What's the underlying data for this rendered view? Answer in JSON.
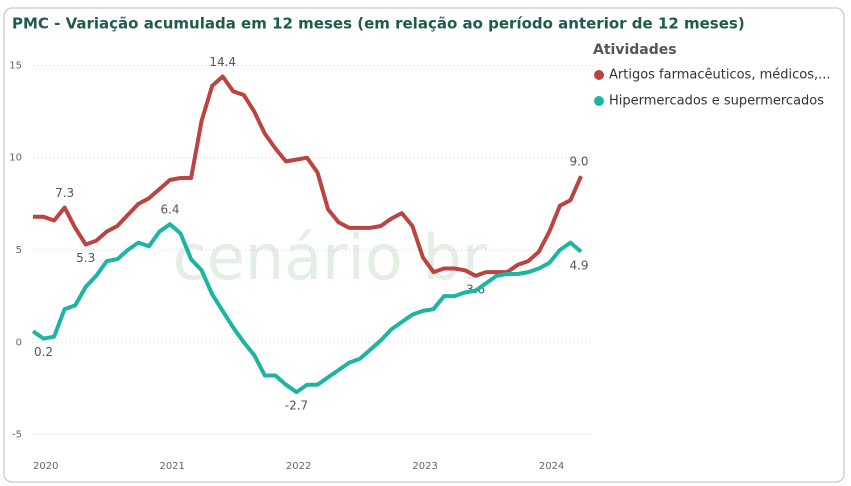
{
  "chart_data": {
    "type": "line",
    "title": "PMC - Variação acumulada em 12 meses (em relação ao período anterior de 12 meses)",
    "legend_title": "Atividades",
    "watermark": "cenário br",
    "categories": [
      "2020",
      null,
      null,
      null,
      null,
      null,
      null,
      null,
      null,
      null,
      null,
      null,
      "2021",
      null,
      null,
      null,
      null,
      null,
      null,
      null,
      null,
      null,
      null,
      null,
      "2022",
      null,
      null,
      null,
      null,
      null,
      null,
      null,
      null,
      null,
      null,
      null,
      "2023",
      null,
      null,
      null,
      null,
      null,
      null,
      null,
      null,
      null,
      null,
      null,
      "2024",
      null,
      null,
      null,
      null
    ],
    "ylim": [
      -6,
      16
    ],
    "yticks": [
      -5,
      0,
      5,
      10,
      15
    ],
    "grid": true,
    "legend": "right",
    "series": [
      {
        "name": "Artigos farmacêuticos, médicos,...",
        "color": "#bb4441",
        "values": [
          6.8,
          6.8,
          6.6,
          7.3,
          6.2,
          5.3,
          5.5,
          6.0,
          6.3,
          6.9,
          7.5,
          7.8,
          8.3,
          8.8,
          8.9,
          8.9,
          12.0,
          13.9,
          14.4,
          13.6,
          13.4,
          12.5,
          11.3,
          10.5,
          9.8,
          9.9,
          10.0,
          9.2,
          7.2,
          6.5,
          6.2,
          6.2,
          6.2,
          6.3,
          6.7,
          7.0,
          6.3,
          4.6,
          3.8,
          4.0,
          4.0,
          3.9,
          3.6,
          3.8,
          3.8,
          3.8,
          4.2,
          4.4,
          4.9,
          6.0,
          7.4,
          7.7,
          9.0
        ],
        "value_labels": [
          null,
          null,
          null,
          "7.3",
          null,
          "5.3",
          null,
          null,
          null,
          null,
          null,
          null,
          null,
          null,
          null,
          null,
          null,
          null,
          "14.4",
          null,
          null,
          null,
          null,
          null,
          null,
          null,
          null,
          null,
          null,
          null,
          null,
          null,
          null,
          null,
          null,
          null,
          null,
          null,
          null,
          null,
          null,
          null,
          "3.6",
          null,
          null,
          null,
          null,
          null,
          null,
          null,
          null,
          null,
          "9.0"
        ]
      },
      {
        "name": "Hipermercados e supermercados",
        "color": "#1db5a2",
        "values": [
          0.6,
          0.2,
          0.3,
          1.8,
          2.0,
          3.0,
          3.6,
          4.4,
          4.5,
          5.0,
          5.4,
          5.2,
          6.0,
          6.4,
          5.9,
          4.5,
          3.9,
          2.6,
          1.7,
          0.8,
          0.0,
          -0.7,
          -1.8,
          -1.8,
          -2.3,
          -2.7,
          -2.3,
          -2.3,
          -1.9,
          -1.5,
          -1.1,
          -0.9,
          -0.4,
          0.1,
          0.7,
          1.1,
          1.5,
          1.7,
          1.8,
          2.5,
          2.5,
          2.7,
          2.8,
          3.2,
          3.6,
          3.7,
          3.7,
          3.8,
          4.0,
          4.3,
          5.0,
          5.4,
          4.9
        ],
        "value_labels": [
          null,
          "0.2",
          null,
          null,
          null,
          null,
          null,
          null,
          null,
          null,
          null,
          null,
          null,
          "6.4",
          null,
          null,
          null,
          null,
          null,
          null,
          null,
          null,
          null,
          null,
          null,
          "-2.7",
          null,
          null,
          null,
          null,
          null,
          null,
          null,
          null,
          null,
          null,
          null,
          null,
          null,
          null,
          null,
          null,
          null,
          null,
          null,
          null,
          null,
          null,
          null,
          null,
          null,
          null,
          "4.9"
        ]
      }
    ]
  }
}
